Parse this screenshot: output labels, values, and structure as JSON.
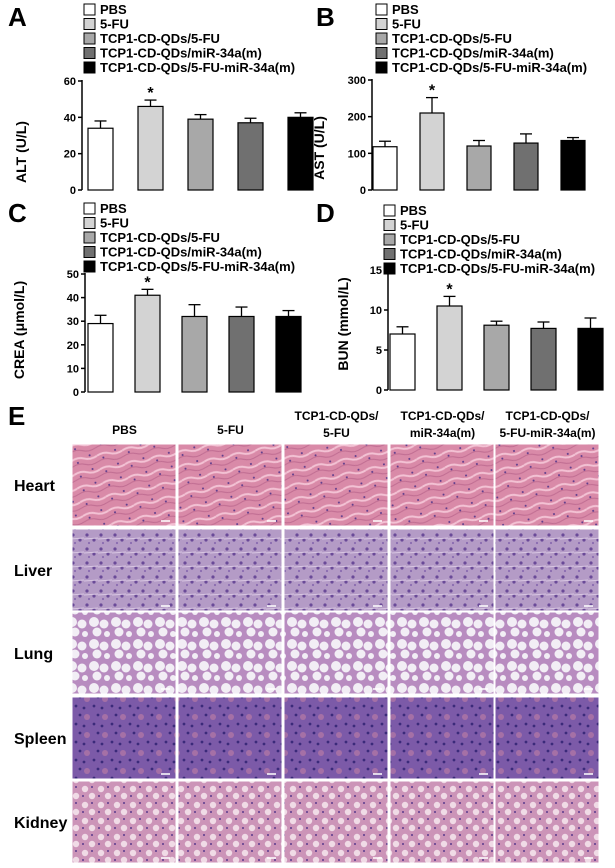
{
  "colors": {
    "group_fills": [
      "#ffffff",
      "#d3d3d3",
      "#a8a8a8",
      "#707070",
      "#000000"
    ],
    "heart": "#d98aa8",
    "liver": "#b49bc6",
    "lung": "#e8e2ee",
    "spleen": "#7c5aa8",
    "kidney": "#cc94b8"
  },
  "legend": [
    "PBS",
    "5-FU",
    "TCP1-CD-QDs/5-FU",
    "TCP1-CD-QDs/miR-34a(m)",
    "TCP1-CD-QDs/5-FU-miR-34a(m)"
  ],
  "chart_data": [
    {
      "panel": "A",
      "type": "bar",
      "categories": [
        "PBS",
        "5-FU",
        "TCP1-CD-QDs/5-FU",
        "TCP1-CD-QDs/miR-34a(m)",
        "TCP1-CD-QDs/5-FU-miR-34a(m)"
      ],
      "values": [
        34,
        46,
        39,
        37,
        40
      ],
      "errors": [
        4,
        3.5,
        2.5,
        2.5,
        2.5
      ],
      "significant": [
        false,
        true,
        false,
        false,
        false
      ],
      "ylabel": "ALT (U/L)",
      "ylim": [
        0,
        60
      ],
      "yticks": [
        0,
        20,
        40,
        60
      ],
      "legend": "top-left",
      "grid": false
    },
    {
      "panel": "B",
      "type": "bar",
      "categories": [
        "PBS",
        "5-FU",
        "TCP1-CD-QDs/5-FU",
        "TCP1-CD-QDs/miR-34a(m)",
        "TCP1-CD-QDs/5-FU-miR-34a(m)"
      ],
      "values": [
        118,
        210,
        120,
        128,
        135
      ],
      "errors": [
        15,
        42,
        15,
        25,
        8
      ],
      "significant": [
        false,
        true,
        false,
        false,
        false
      ],
      "ylabel": "AST (U/L)",
      "ylim": [
        0,
        300
      ],
      "yticks": [
        0,
        100,
        200,
        300
      ],
      "legend": "top-left",
      "grid": false
    },
    {
      "panel": "C",
      "type": "bar",
      "categories": [
        "PBS",
        "5-FU",
        "TCP1-CD-QDs/5-FU",
        "TCP1-CD-QDs/miR-34a(m)",
        "TCP1-CD-QDs/5-FU-miR-34a(m)"
      ],
      "values": [
        29,
        41,
        32,
        32,
        32
      ],
      "errors": [
        3.5,
        2.5,
        5,
        4,
        2.5
      ],
      "significant": [
        false,
        true,
        false,
        false,
        false
      ],
      "ylabel": "CREA (μmol/L)",
      "ylim": [
        0,
        50
      ],
      "yticks": [
        0,
        10,
        20,
        30,
        40,
        50
      ],
      "legend": "top-left",
      "grid": false
    },
    {
      "panel": "D",
      "type": "bar",
      "categories": [
        "PBS",
        "5-FU",
        "TCP1-CD-QDs/5-FU",
        "TCP1-CD-QDs/miR-34a(m)",
        "TCP1-CD-QDs/5-FU-miR-34a(m)"
      ],
      "values": [
        7,
        10.5,
        8.1,
        7.7,
        7.7
      ],
      "errors": [
        0.9,
        1.2,
        0.5,
        0.8,
        1.3
      ],
      "significant": [
        false,
        true,
        false,
        false,
        false
      ],
      "ylabel": "BUN (mmol/L)",
      "ylim": [
        0,
        15
      ],
      "yticks": [
        0,
        5,
        10,
        15
      ],
      "legend": "top-left",
      "grid": false
    }
  ],
  "histology": {
    "panel": "E",
    "columns": [
      "PBS",
      "5-FU",
      "TCP1-CD-QDs/ 5-FU",
      "TCP1-CD-QDs/ miR-34a(m)",
      "TCP1-CD-QDs/ 5-FU-miR-34a(m)"
    ],
    "rows": [
      "Heart",
      "Liver",
      "Lung",
      "Spleen",
      "Kidney"
    ]
  }
}
